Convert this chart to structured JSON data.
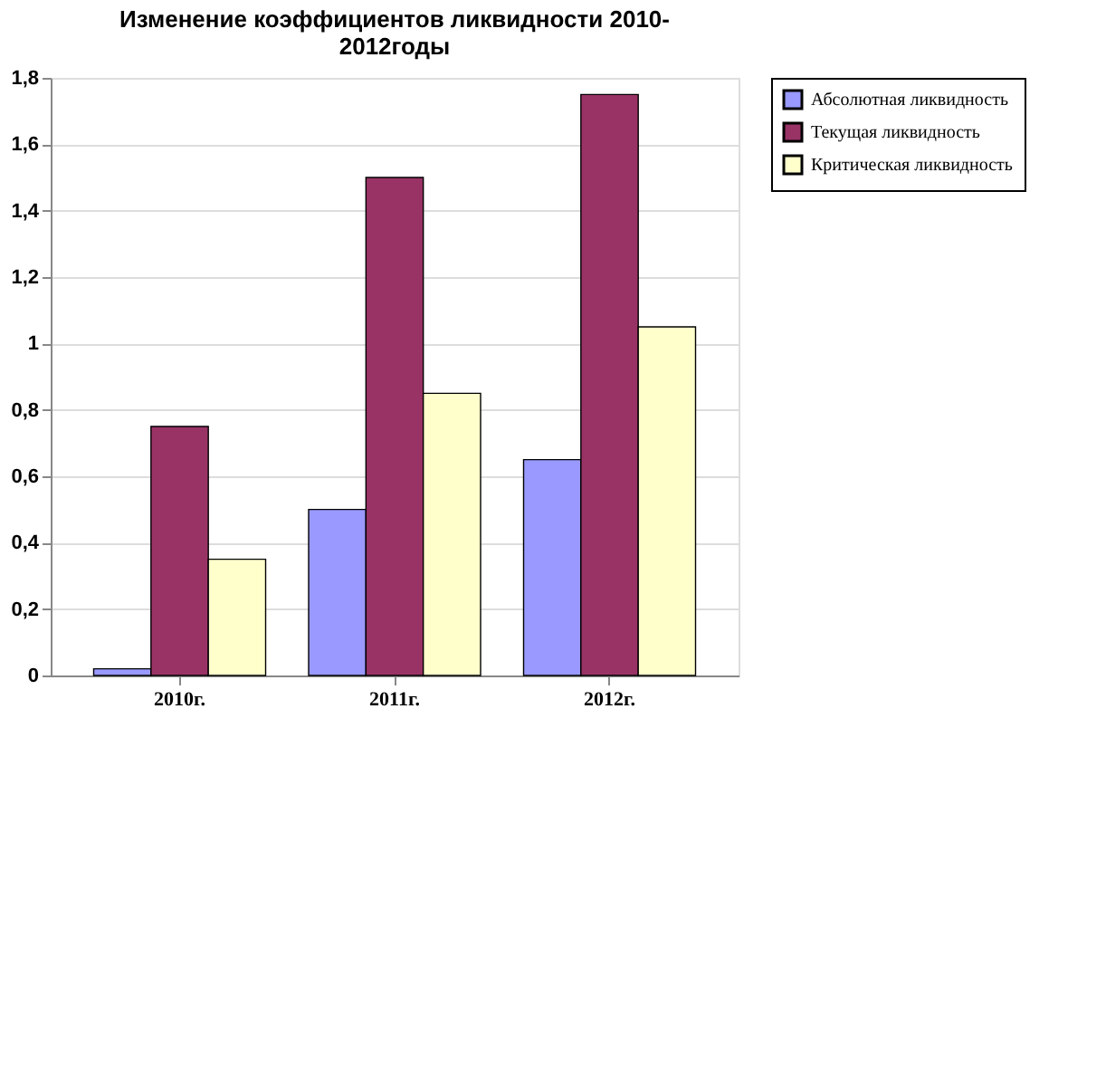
{
  "chart_data": {
    "type": "bar",
    "title": [
      "Изменение коэффициентов ликвидности 2010-",
      "2012годы"
    ],
    "categories": [
      "2010г.",
      "2011г.",
      "2012г."
    ],
    "series": [
      {
        "name": "Абсолютная ликвидность",
        "color": "#9999ff",
        "values": [
          0.02,
          0.5,
          0.65
        ]
      },
      {
        "name": "Текущая ликвидность",
        "color": "#993366",
        "values": [
          0.75,
          1.5,
          1.75
        ]
      },
      {
        "name": "Критическая ликвидность",
        "color": "#ffffcc",
        "values": [
          0.35,
          0.85,
          1.05
        ]
      }
    ],
    "ylim": [
      0,
      1.8
    ],
    "yticks": [
      0,
      {
        "value": 0.2,
        "label": "0,2"
      },
      {
        "value": 0.4,
        "label": "0,4"
      },
      {
        "value": 0.6,
        "label": "0,6"
      },
      {
        "value": 0.8,
        "label": "0,8"
      },
      1,
      {
        "value": 1.2,
        "label": "1,2"
      },
      {
        "value": 1.4,
        "label": "1,4"
      },
      {
        "value": 1.6,
        "label": "1,6"
      },
      {
        "value": 1.8,
        "label": "1,8"
      }
    ],
    "grid": "y",
    "legend": "right"
  }
}
